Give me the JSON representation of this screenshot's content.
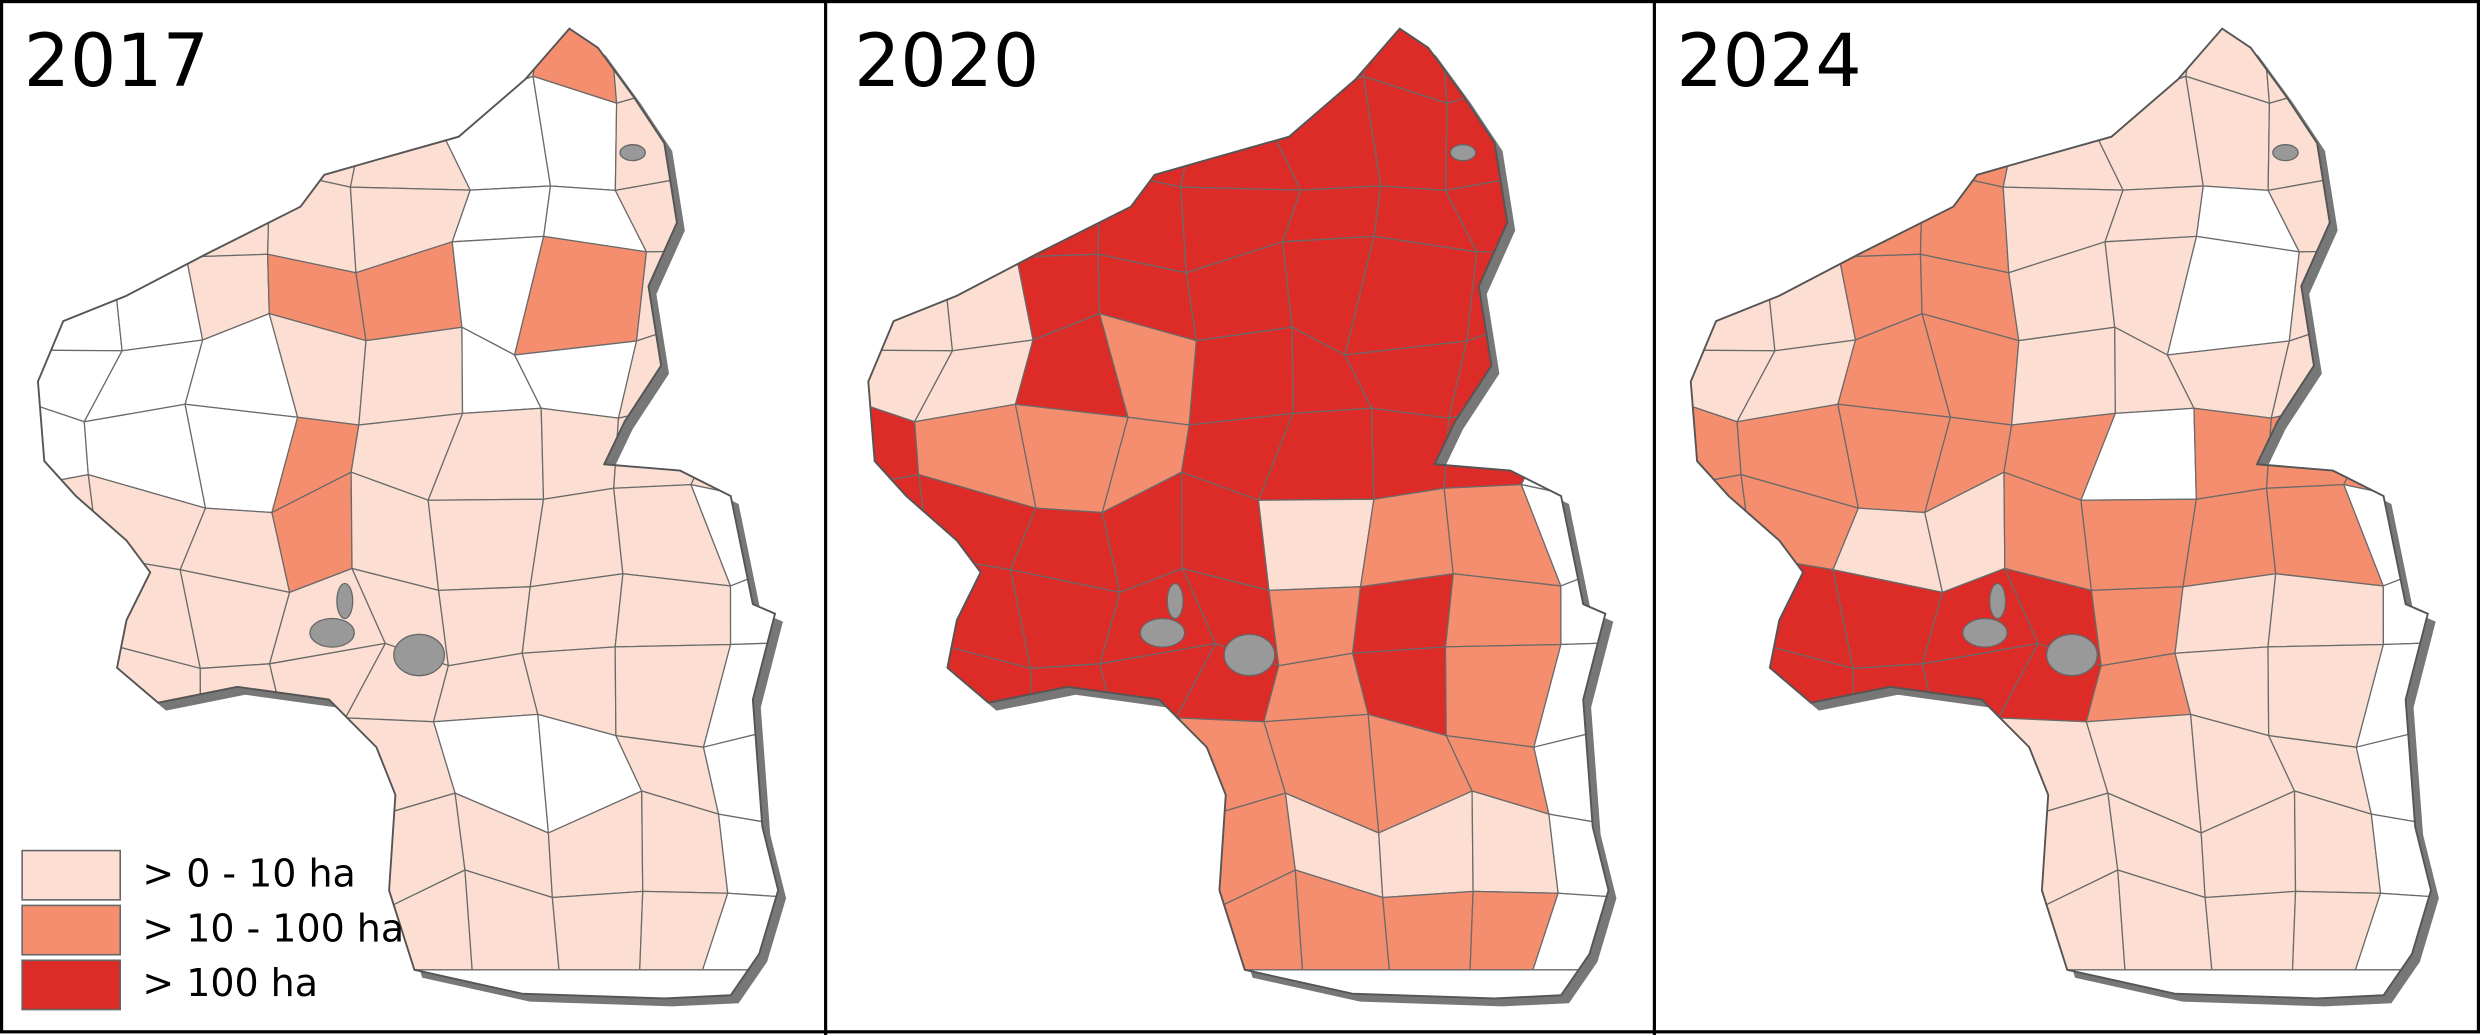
{
  "panels": [
    {
      "title": "2017"
    },
    {
      "title": "2020"
    },
    {
      "title": "2024"
    }
  ],
  "legend": {
    "items": [
      {
        "label": "> 0 - 10 ha",
        "color": "#fcdfd2"
      },
      {
        "label": "> 10 - 100 ha",
        "color": "#f58e6e"
      },
      {
        "label": "> 100 ha",
        "color": "#dd2b27"
      }
    ]
  }
}
